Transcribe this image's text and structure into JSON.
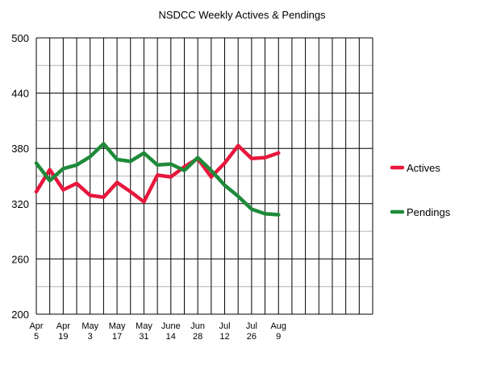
{
  "chart_data": {
    "type": "line",
    "title": "NSDCC Weekly Actives & Pendings",
    "xlabel": "",
    "ylabel": "",
    "ylim": [
      200,
      500
    ],
    "yticks": [
      "500",
      "440",
      "380",
      "320",
      "260",
      "200"
    ],
    "ytick_values": [
      500,
      440,
      380,
      320,
      260,
      200
    ],
    "x_tick_labels": [
      {
        "line1": "Apr",
        "line2": "5"
      },
      {
        "line1": "Apr",
        "line2": "19"
      },
      {
        "line1": "May",
        "line2": "3"
      },
      {
        "line1": "May",
        "line2": "17"
      },
      {
        "line1": "May",
        "line2": "31"
      },
      {
        "line1": "June",
        "line2": "14"
      },
      {
        "line1": "Jun",
        "line2": "28"
      },
      {
        "line1": "Jul",
        "line2": "12"
      },
      {
        "line1": "Jul",
        "line2": "26"
      },
      {
        "line1": "Aug",
        "line2": "9"
      }
    ],
    "x_slots": 25,
    "grid": true,
    "legend_position": "right",
    "series": [
      {
        "name": "Actives",
        "color": "#e8173c",
        "values": [
          333,
          357,
          335,
          342,
          329,
          327,
          343,
          333,
          322,
          351,
          349,
          360,
          369,
          349,
          364,
          383,
          369,
          370,
          375
        ]
      },
      {
        "name": "Pendings",
        "color": "#1e8a3a",
        "values": [
          364,
          345,
          358,
          362,
          371,
          385,
          368,
          366,
          375,
          362,
          363,
          356,
          370,
          356,
          340,
          328,
          314,
          309,
          308
        ]
      }
    ]
  }
}
